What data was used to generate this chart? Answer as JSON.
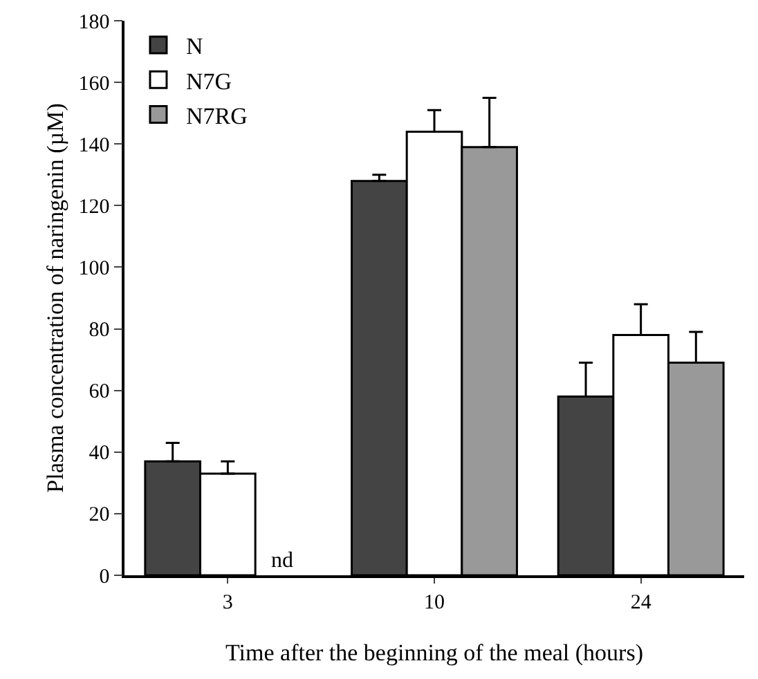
{
  "chart_data": {
    "type": "bar",
    "xlabel": "Time after the beginning of the meal (hours)",
    "ylabel": "Plasma concentration of naringenin (µM)",
    "categories": [
      "3",
      "10",
      "24"
    ],
    "series": [
      {
        "name": "N",
        "color": "#444444",
        "values": [
          37,
          128,
          58
        ],
        "errors": [
          [
            37,
            43
          ],
          [
            128,
            130
          ],
          [
            58,
            69
          ]
        ]
      },
      {
        "name": "N7G",
        "color": "#ffffff",
        "values": [
          33,
          144,
          78
        ],
        "errors": [
          [
            33,
            37
          ],
          [
            144,
            151
          ],
          [
            78,
            88
          ]
        ]
      },
      {
        "name": "N7RG",
        "color": "#999999",
        "values": [
          null,
          139,
          69
        ],
        "errors": [
          null,
          [
            139,
            155
          ],
          [
            69,
            79
          ]
        ]
      }
    ],
    "annotations": [
      {
        "text": "nd",
        "x": "3",
        "y": 0
      }
    ],
    "ylim": [
      0,
      180
    ],
    "yticks": [
      0,
      20,
      40,
      60,
      80,
      100,
      120,
      140,
      160,
      180
    ],
    "grid": false,
    "legend": "top left"
  }
}
